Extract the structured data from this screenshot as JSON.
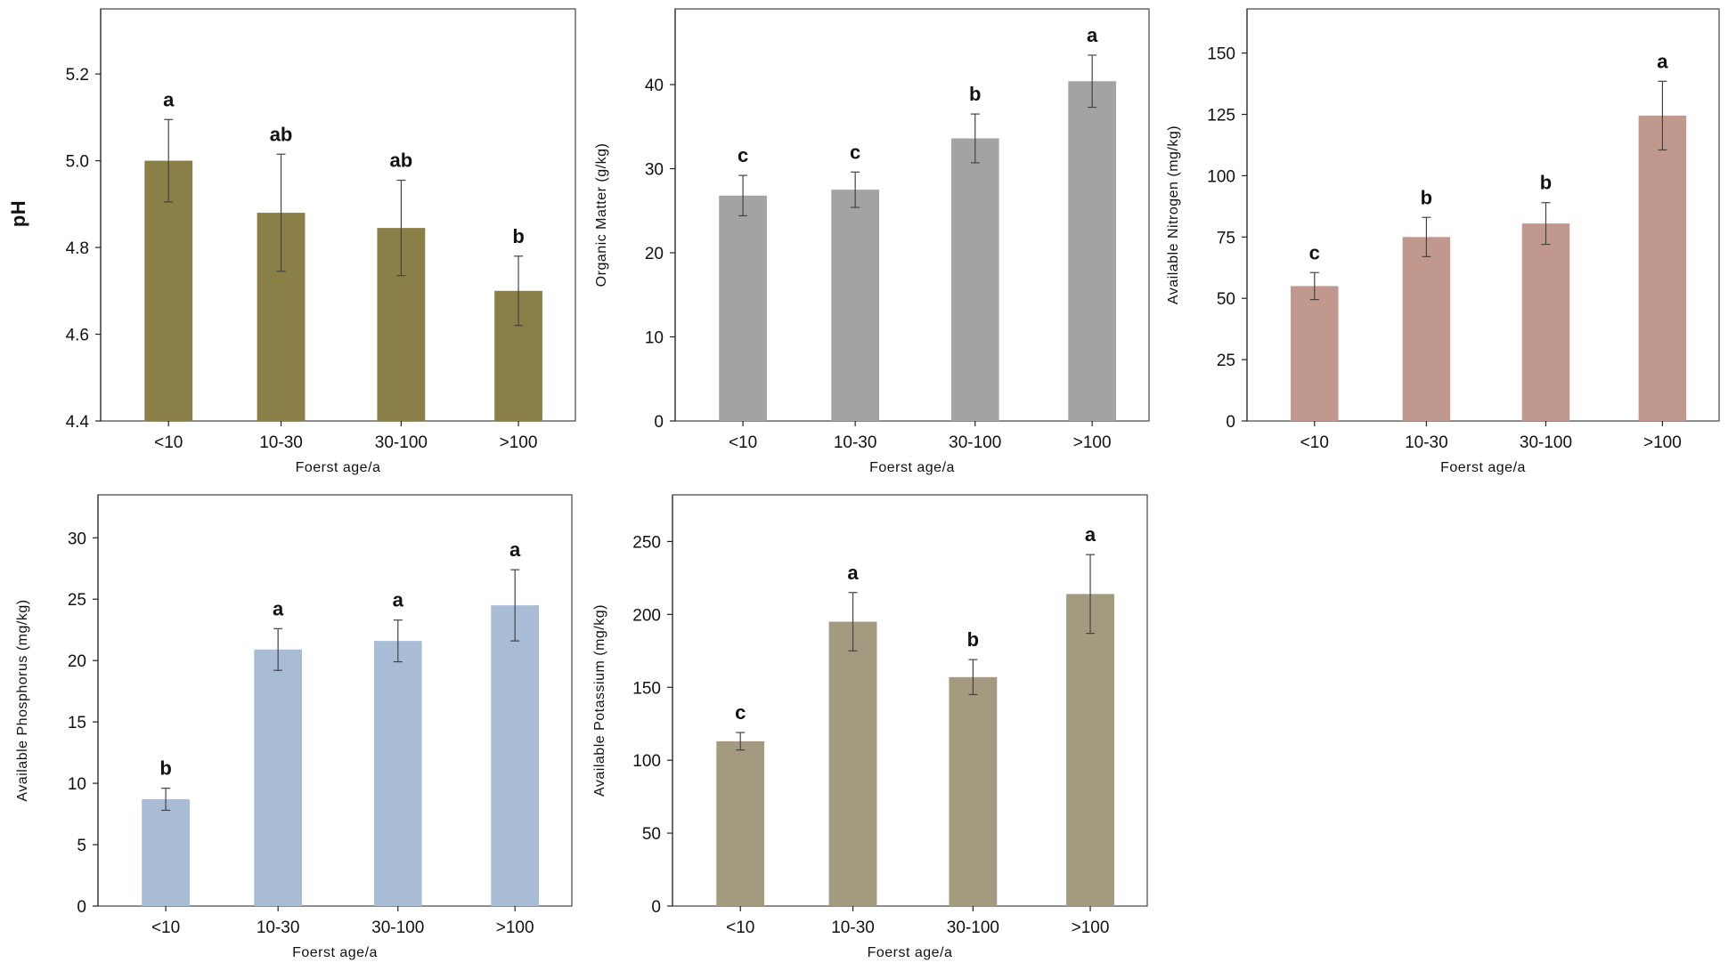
{
  "chart_data": [
    {
      "type": "bar",
      "panel": "top-left",
      "ylabel": "pH",
      "xlabel": "Foerst age/a",
      "categories": [
        "<10",
        "10-30",
        "30-100",
        ">100"
      ],
      "values": [
        5.0,
        4.88,
        4.845,
        4.7
      ],
      "errors": [
        0.095,
        0.135,
        0.11,
        0.08
      ],
      "letters": [
        "a",
        "ab",
        "ab",
        "b"
      ],
      "ylim": [
        4.4,
        5.35
      ],
      "yticks": [
        4.4,
        4.6,
        4.8,
        5.0,
        5.2
      ],
      "ytick_labels": [
        "4.4",
        "4.6",
        "4.8",
        "5.0",
        "5.2"
      ],
      "color": "#8b7f48"
    },
    {
      "type": "bar",
      "panel": "top-middle",
      "ylabel": "Organic Matter (g/kg)",
      "xlabel": "Foerst age/a",
      "categories": [
        "<10",
        "10-30",
        "30-100",
        ">100"
      ],
      "values": [
        26.8,
        27.5,
        33.6,
        40.4
      ],
      "errors": [
        2.4,
        2.1,
        2.9,
        3.1
      ],
      "letters": [
        "c",
        "c",
        "b",
        "a"
      ],
      "ylim": [
        0,
        49
      ],
      "yticks": [
        0,
        10,
        20,
        30,
        40
      ],
      "ytick_labels": [
        "0",
        "10",
        "20",
        "30",
        "40"
      ],
      "color": "#a3a3a3"
    },
    {
      "type": "bar",
      "panel": "top-right",
      "ylabel": "Available Nitrogen (mg/kg)",
      "xlabel": "Foerst age/a",
      "categories": [
        "<10",
        "10-30",
        "30-100",
        ">100"
      ],
      "values": [
        55,
        75,
        80.5,
        124.5
      ],
      "errors": [
        5.5,
        8,
        8.5,
        14
      ],
      "letters": [
        "c",
        "b",
        "b",
        "a"
      ],
      "ylim": [
        0,
        168
      ],
      "yticks": [
        0,
        25,
        50,
        75,
        100,
        125,
        150
      ],
      "ytick_labels": [
        "0",
        "25",
        "50",
        "75",
        "100",
        "125",
        "150"
      ],
      "color": "#c0988e"
    },
    {
      "type": "bar",
      "panel": "bottom-left",
      "ylabel": "Available Phosphorus (mg/kg)",
      "xlabel": "Foerst age/a",
      "categories": [
        "<10",
        "10-30",
        "30-100",
        ">100"
      ],
      "values": [
        8.7,
        20.9,
        21.6,
        24.5
      ],
      "errors": [
        0.9,
        1.7,
        1.7,
        2.9
      ],
      "letters": [
        "b",
        "a",
        "a",
        "a"
      ],
      "ylim": [
        0,
        33.5
      ],
      "yticks": [
        0,
        5,
        10,
        15,
        20,
        25,
        30
      ],
      "ytick_labels": [
        "0",
        "5",
        "10",
        "15",
        "20",
        "25",
        "30"
      ],
      "color": "#a8bcd6"
    },
    {
      "type": "bar",
      "panel": "bottom-middle",
      "ylabel": "Available Potassium (mg/kg)",
      "xlabel": "Foerst age/a",
      "categories": [
        "<10",
        "10-30",
        "30-100",
        ">100"
      ],
      "values": [
        113,
        195,
        157,
        214
      ],
      "errors": [
        6,
        20,
        12,
        27
      ],
      "letters": [
        "c",
        "a",
        "b",
        "a"
      ],
      "ylim": [
        0,
        282
      ],
      "yticks": [
        0,
        50,
        100,
        150,
        200,
        250
      ],
      "ytick_labels": [
        "0",
        "50",
        "100",
        "150",
        "200",
        "250"
      ],
      "color": "#a39a80"
    }
  ]
}
